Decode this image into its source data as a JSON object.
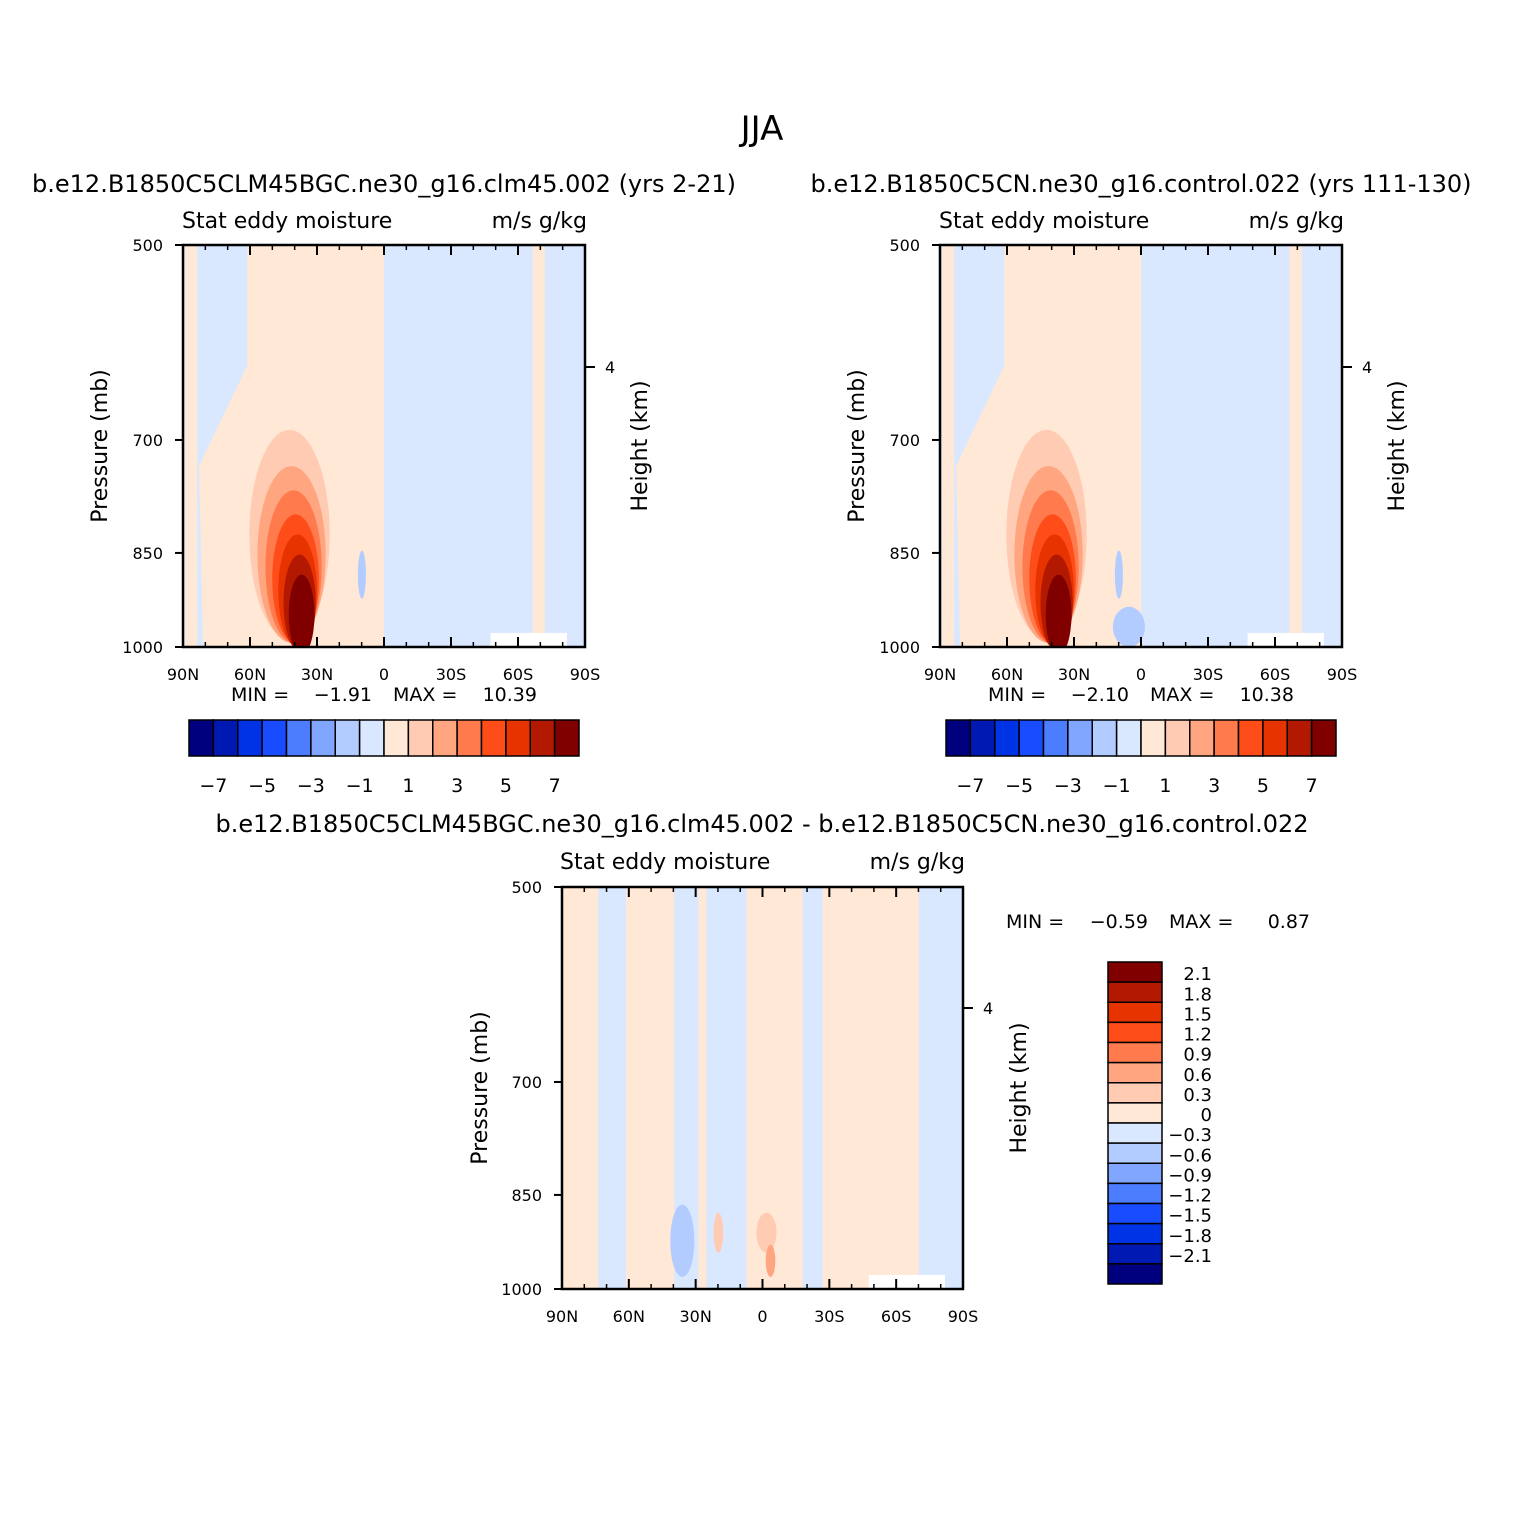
{
  "figure": {
    "title": "JJA"
  },
  "palette": {
    "cold": [
      "#00007f",
      "#0019b3",
      "#0033e6",
      "#1a4cff",
      "#4d7dff",
      "#80a6ff",
      "#b3ccff",
      "#d9e8ff"
    ],
    "warm": [
      "#ffe8d6",
      "#ffccb3",
      "#ffa680",
      "#ff7a4d",
      "#ff4d1a",
      "#e63300",
      "#b31900",
      "#800000"
    ]
  },
  "chart_data": [
    {
      "type": "heatmap",
      "subtitle": "b.e12.B1850C5CLM45BGC.ne30_g16.clm45.002 (yrs 2-21)",
      "left_string": "Stat eddy moisture",
      "right_string": "m/s g/kg",
      "ylabel": "Pressure (mb)",
      "y2label": "Height (km)",
      "xticks": [
        "90N",
        "60N",
        "30N",
        "0",
        "30S",
        "60S",
        "90S"
      ],
      "yticks": [
        "500",
        "700",
        "850",
        "1000"
      ],
      "y2ticks": [
        "4"
      ],
      "xlim": [
        90,
        -90
      ],
      "ylim": [
        1000,
        500
      ],
      "min_label": "MIN =",
      "min_value": "-1.91",
      "max_label": "MAX =",
      "max_value": "10.39",
      "colorbar_labels": [
        "-7",
        "-5",
        "-3",
        "-1",
        "1",
        "3",
        "5",
        "7"
      ]
    },
    {
      "type": "heatmap",
      "subtitle": "b.e12.B1850C5CN.ne30_g16.control.022 (yrs 111-130)",
      "left_string": "Stat eddy moisture",
      "right_string": "m/s g/kg",
      "ylabel": "Pressure (mb)",
      "y2label": "Height (km)",
      "xticks": [
        "90N",
        "60N",
        "30N",
        "0",
        "30S",
        "60S",
        "90S"
      ],
      "yticks": [
        "500",
        "700",
        "850",
        "1000"
      ],
      "y2ticks": [
        "4"
      ],
      "xlim": [
        90,
        -90
      ],
      "ylim": [
        1000,
        500
      ],
      "min_label": "MIN =",
      "min_value": "-2.10",
      "max_label": "MAX =",
      "max_value": "10.38",
      "colorbar_labels": [
        "-7",
        "-5",
        "-3",
        "-1",
        "1",
        "3",
        "5",
        "7"
      ]
    },
    {
      "type": "heatmap",
      "subtitle": "b.e12.B1850C5CLM45BGC.ne30_g16.clm45.002 - b.e12.B1850C5CN.ne30_g16.control.022",
      "left_string": "Stat eddy moisture",
      "right_string": "m/s g/kg",
      "ylabel": "Pressure (mb)",
      "y2label": "Height (km)",
      "xticks": [
        "90N",
        "60N",
        "30N",
        "0",
        "30S",
        "60S",
        "90S"
      ],
      "yticks": [
        "500",
        "700",
        "850",
        "1000"
      ],
      "y2ticks": [
        "4"
      ],
      "xlim": [
        90,
        -90
      ],
      "ylim": [
        1000,
        500
      ],
      "min_label": "MIN =",
      "min_value": "-0.59",
      "max_label": "MAX =",
      "max_value": "0.87",
      "colorbar_labels": [
        "2.1",
        "1.8",
        "1.5",
        "1.2",
        "0.9",
        "0.6",
        "0.3",
        "0",
        "-0.3",
        "-0.6",
        "-0.9",
        "-1.2",
        "-1.5",
        "-1.8",
        "-2.1"
      ]
    }
  ]
}
